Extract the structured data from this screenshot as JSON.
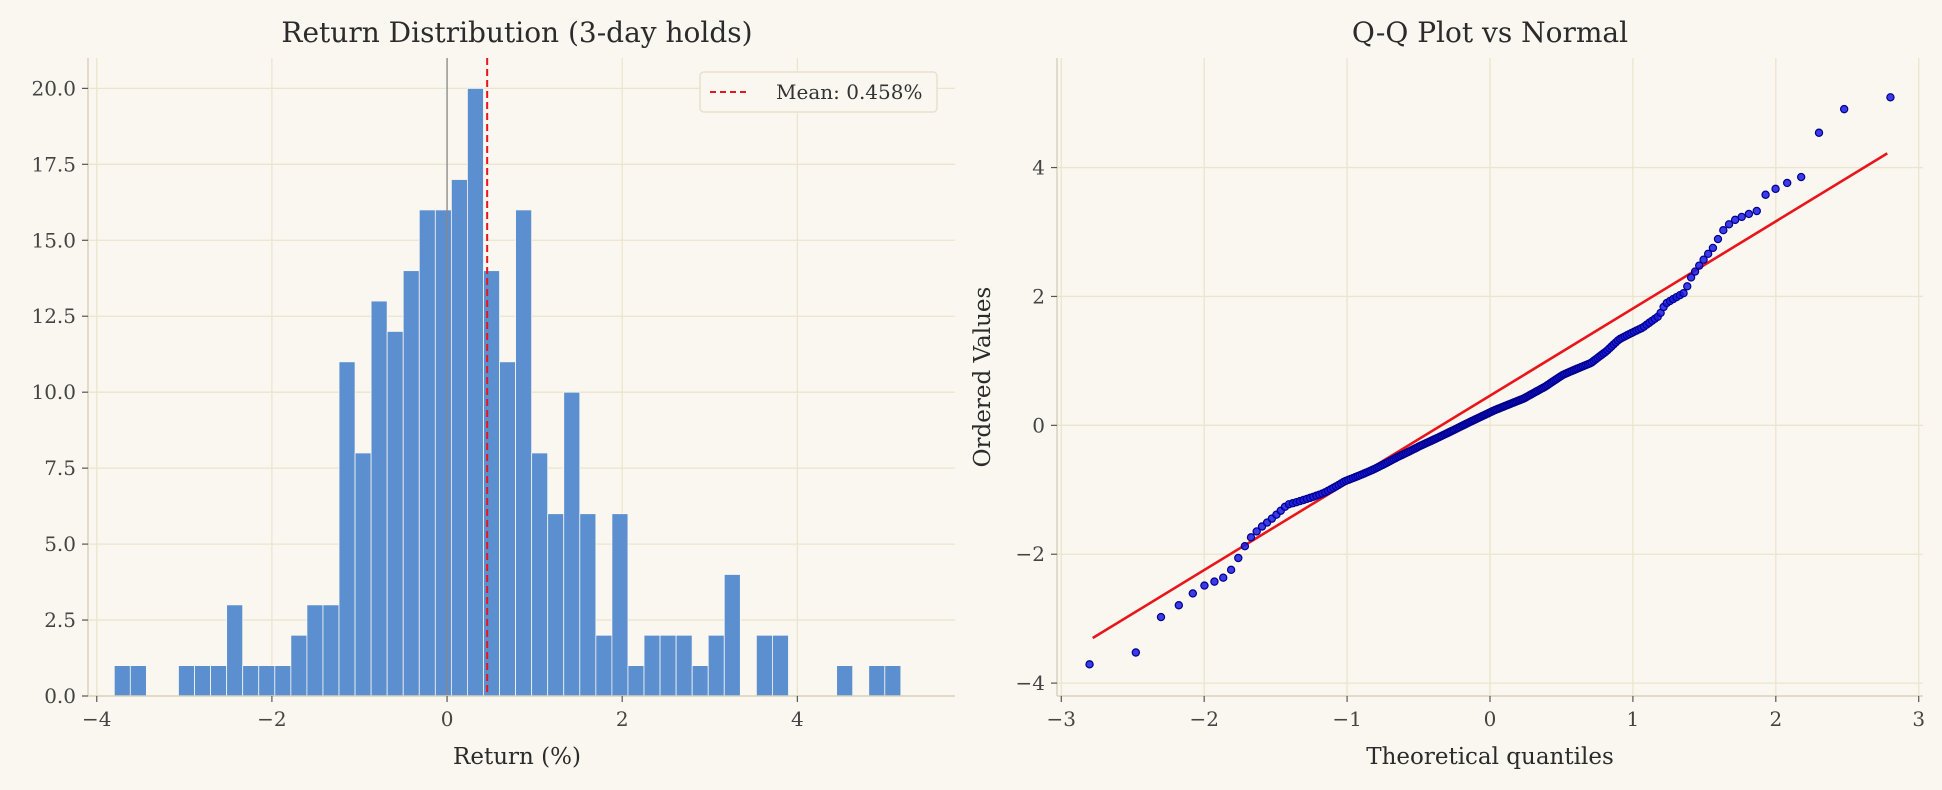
{
  "chart_data": [
    {
      "type": "bar",
      "title": "Return Distribution (3-day holds)",
      "xlabel": "Return (%)",
      "ylabel": "",
      "xlim": [
        -4.1,
        5.8
      ],
      "ylim": [
        0,
        21
      ],
      "xticks": [
        -4,
        -2,
        0,
        2,
        4
      ],
      "xtick_labels": [
        "−4",
        "−2",
        "0",
        "2",
        "4"
      ],
      "yticks": [
        0,
        2.5,
        5,
        7.5,
        10,
        12.5,
        15,
        17.5,
        20
      ],
      "ytick_labels": [
        "0.0",
        "2.5",
        "5.0",
        "7.5",
        "10.0",
        "12.5",
        "15.0",
        "17.5",
        "20.0"
      ],
      "bin_start": -3.8,
      "bin_width": 0.1833,
      "counts": [
        1,
        1,
        0,
        0,
        1,
        1,
        1,
        3,
        1,
        1,
        1,
        2,
        3,
        3,
        11,
        8,
        13,
        12,
        14,
        16,
        16,
        17,
        20,
        14,
        11,
        16,
        8,
        6,
        10,
        6,
        2,
        6,
        1,
        2,
        2,
        2,
        1,
        2,
        4,
        0,
        2,
        2,
        0,
        0,
        0,
        1,
        0,
        1,
        1
      ],
      "mean_line": {
        "x": 0.458,
        "label": "Mean: 0.458%"
      },
      "zero_line": 0,
      "grid": true,
      "legend_position": "top-right",
      "colors": {
        "bar": "#5b8fcf",
        "mean": "#e8151b",
        "zero": "#888888"
      }
    },
    {
      "type": "scatter",
      "title": "Q-Q Plot vs Normal",
      "xlabel": "Theoretical quantiles",
      "ylabel": "Ordered Values",
      "xlim": [
        -3.03,
        3.03
      ],
      "ylim": [
        -4.2,
        5.7
      ],
      "xticks": [
        -3,
        -2,
        -1,
        0,
        1,
        2,
        3
      ],
      "xtick_labels": [
        "−3",
        "−2",
        "−1",
        "0",
        "1",
        "2",
        "3"
      ],
      "yticks": [
        -4,
        -2,
        0,
        2,
        4
      ],
      "ytick_labels": [
        "−4",
        "−2",
        "0",
        "2",
        "4"
      ],
      "fit_line": {
        "x": [
          -2.78,
          2.78
        ],
        "y": [
          -3.3,
          4.22
        ]
      },
      "grid": true,
      "colors": {
        "points": "#1a1ae6",
        "point_edge": "#00008b",
        "fit": "#e8151b"
      }
    }
  ]
}
